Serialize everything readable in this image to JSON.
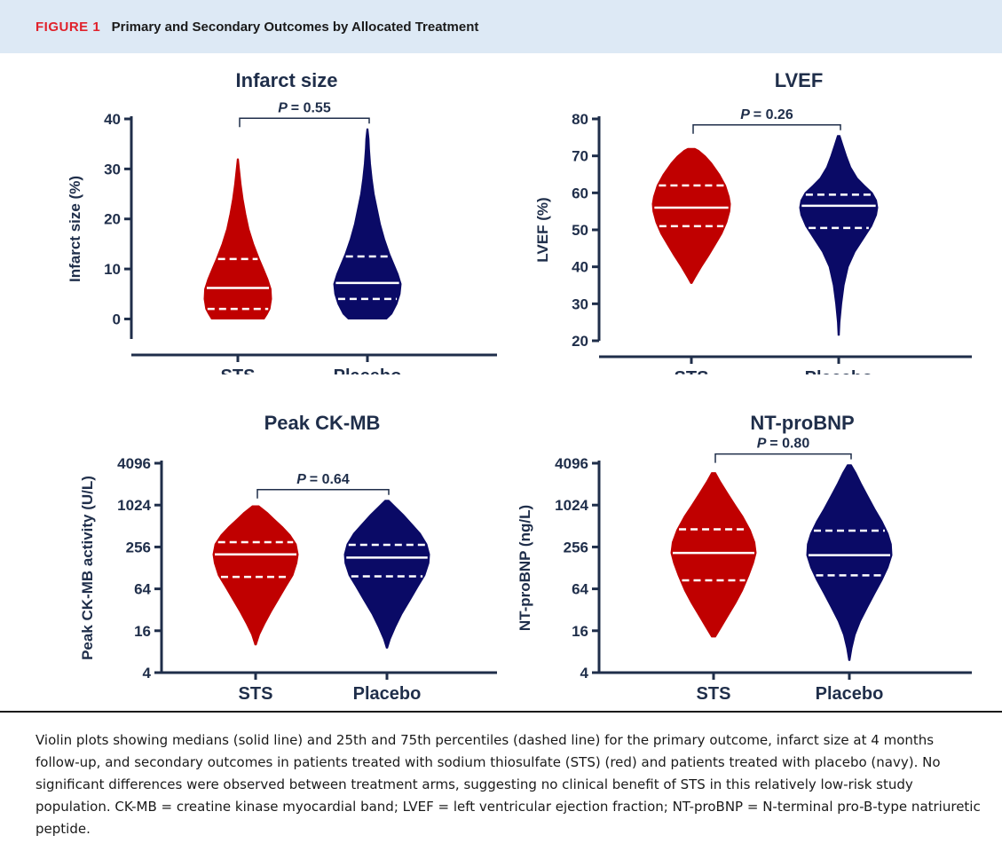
{
  "figure": {
    "label": "FIGURE 1",
    "title": "Primary and Secondary Outcomes by Allocated Treatment"
  },
  "colors": {
    "sts": "#c00000",
    "placebo": "#0a0a66",
    "axis": "#1f2e4a"
  },
  "chart_data": [
    {
      "type": "violin",
      "title": "Infarct size",
      "ylabel": "Infarct size (%)",
      "xlabel": "",
      "scale": "linear",
      "ylim": [
        -4,
        40
      ],
      "yticks": [
        0,
        10,
        20,
        30,
        40
      ],
      "ytick_labels": [
        "0",
        "10",
        "20",
        "30",
        "40"
      ],
      "categories": [
        "STS",
        "Placebo"
      ],
      "pvalue": "= 0.55",
      "series": [
        {
          "name": "STS",
          "color": "#c00000",
          "min": 0,
          "max": 32,
          "q1": 2,
          "median": 6.2,
          "q3": 12,
          "profile": [
            [
              0,
              5.0
            ],
            [
              1,
              5.6
            ],
            [
              2,
              6.1
            ],
            [
              4,
              6.4
            ],
            [
              6,
              6.3
            ],
            [
              8,
              5.7
            ],
            [
              10,
              4.9
            ],
            [
              12,
              4.1
            ],
            [
              15,
              3.0
            ],
            [
              18,
              2.1
            ],
            [
              21,
              1.5
            ],
            [
              24,
              1.0
            ],
            [
              27,
              0.6
            ],
            [
              30,
              0.3
            ],
            [
              32,
              0.1
            ]
          ]
        },
        {
          "name": "Placebo",
          "color": "#0a0a66",
          "min": 0,
          "max": 38,
          "q1": 4,
          "median": 7.2,
          "q3": 12.5,
          "profile": [
            [
              0,
              3.7
            ],
            [
              1,
              4.7
            ],
            [
              3,
              5.7
            ],
            [
              5,
              6.3
            ],
            [
              7,
              6.5
            ],
            [
              9,
              5.9
            ],
            [
              11,
              5.1
            ],
            [
              13,
              4.3
            ],
            [
              16,
              3.3
            ],
            [
              19,
              2.5
            ],
            [
              22,
              1.9
            ],
            [
              25,
              1.3
            ],
            [
              28,
              0.9
            ],
            [
              31,
              0.6
            ],
            [
              34,
              0.4
            ],
            [
              36,
              0.3
            ],
            [
              38,
              0.1
            ]
          ]
        }
      ]
    },
    {
      "type": "violin",
      "title": "LVEF",
      "ylabel": "LVEF (%)",
      "xlabel": "",
      "scale": "linear",
      "ylim": [
        20,
        80
      ],
      "yticks": [
        20,
        30,
        40,
        50,
        60,
        70,
        80
      ],
      "ytick_labels": [
        "20",
        "30",
        "40",
        "50",
        "60",
        "70",
        "80"
      ],
      "categories": [
        "STS",
        "Placebo"
      ],
      "pvalue": "= 0.26",
      "series": [
        {
          "name": "STS",
          "color": "#c00000",
          "min": 35.5,
          "max": 72,
          "q1": 51,
          "median": 56,
          "q3": 62,
          "profile": [
            [
              35.5,
              0.1
            ],
            [
              37,
              0.6
            ],
            [
              40,
              1.7
            ],
            [
              43,
              2.9
            ],
            [
              46,
              4.0
            ],
            [
              49,
              5.1
            ],
            [
              52,
              5.9
            ],
            [
              55,
              6.4
            ],
            [
              57,
              6.5
            ],
            [
              59,
              6.3
            ],
            [
              62,
              5.7
            ],
            [
              65,
              4.7
            ],
            [
              68,
              3.4
            ],
            [
              70,
              2.3
            ],
            [
              71.5,
              1.2
            ],
            [
              72,
              0.6
            ]
          ]
        },
        {
          "name": "Placebo",
          "color": "#0a0a66",
          "min": 21.5,
          "max": 75.5,
          "q1": 50.5,
          "median": 56.5,
          "q3": 59.5,
          "profile": [
            [
              21.5,
              0.1
            ],
            [
              25,
              0.2
            ],
            [
              30,
              0.5
            ],
            [
              35,
              0.9
            ],
            [
              40,
              1.6
            ],
            [
              44,
              2.7
            ],
            [
              48,
              4.3
            ],
            [
              51,
              5.5
            ],
            [
              54,
              6.3
            ],
            [
              56,
              6.5
            ],
            [
              58,
              6.3
            ],
            [
              60,
              5.6
            ],
            [
              62,
              4.3
            ],
            [
              64,
              3.1
            ],
            [
              67,
              2.0
            ],
            [
              70,
              1.3
            ],
            [
              73,
              0.7
            ],
            [
              75.5,
              0.2
            ]
          ]
        }
      ]
    },
    {
      "type": "violin",
      "title": "Peak CK-MB",
      "ylabel": "Peak CK-MB activity (U/L)",
      "xlabel": "",
      "scale": "log2",
      "ylim": [
        4,
        4096
      ],
      "yticks": [
        4,
        16,
        64,
        256,
        1024,
        4096
      ],
      "ytick_labels": [
        "4",
        "16",
        "64",
        "256",
        "1024",
        "4096"
      ],
      "categories": [
        "STS",
        "Placebo"
      ],
      "pvalue": "= 0.64",
      "series": [
        {
          "name": "STS",
          "color": "#c00000",
          "min": 10,
          "max": 1000,
          "q1": 95,
          "median": 200,
          "q3": 300,
          "profile": [
            [
              10,
              0.1
            ],
            [
              14,
              0.6
            ],
            [
              20,
              1.4
            ],
            [
              30,
              2.4
            ],
            [
              45,
              3.5
            ],
            [
              70,
              4.7
            ],
            [
              100,
              5.7
            ],
            [
              150,
              6.3
            ],
            [
              200,
              6.5
            ],
            [
              280,
              6.2
            ],
            [
              380,
              5.3
            ],
            [
              500,
              4.1
            ],
            [
              650,
              2.8
            ],
            [
              800,
              1.8
            ],
            [
              1000,
              0.5
            ]
          ]
        },
        {
          "name": "Placebo",
          "color": "#0a0a66",
          "min": 9,
          "max": 1200,
          "q1": 97,
          "median": 180,
          "q3": 275,
          "profile": [
            [
              9,
              0.1
            ],
            [
              12,
              0.5
            ],
            [
              18,
              1.3
            ],
            [
              28,
              2.3
            ],
            [
              45,
              3.6
            ],
            [
              70,
              4.8
            ],
            [
              100,
              5.8
            ],
            [
              150,
              6.4
            ],
            [
              200,
              6.5
            ],
            [
              280,
              6.1
            ],
            [
              400,
              5.1
            ],
            [
              550,
              3.8
            ],
            [
              750,
              2.5
            ],
            [
              950,
              1.4
            ],
            [
              1200,
              0.3
            ]
          ]
        }
      ]
    },
    {
      "type": "violin",
      "title": "NT-proBNP",
      "ylabel": "NT-proBNP (ng/L)",
      "xlabel": "",
      "scale": "log2",
      "ylim": [
        4,
        4096
      ],
      "yticks": [
        4,
        16,
        64,
        256,
        1024,
        4096
      ],
      "ytick_labels": [
        "4",
        "16",
        "64",
        "256",
        "1024",
        "4096"
      ],
      "categories": [
        "STS",
        "Placebo"
      ],
      "pvalue": "= 0.80",
      "series": [
        {
          "name": "STS",
          "color": "#c00000",
          "min": 13,
          "max": 3000,
          "q1": 85,
          "median": 210,
          "q3": 460,
          "profile": [
            [
              13,
              0.3
            ],
            [
              18,
              1.2
            ],
            [
              25,
              2.1
            ],
            [
              40,
              3.4
            ],
            [
              60,
              4.4
            ],
            [
              100,
              5.4
            ],
            [
              150,
              6.1
            ],
            [
              210,
              6.5
            ],
            [
              300,
              6.3
            ],
            [
              450,
              5.6
            ],
            [
              700,
              4.5
            ],
            [
              1000,
              3.4
            ],
            [
              1500,
              2.2
            ],
            [
              2200,
              1.1
            ],
            [
              3000,
              0.3
            ]
          ]
        },
        {
          "name": "Placebo",
          "color": "#0a0a66",
          "min": 6,
          "max": 3900,
          "q1": 100,
          "median": 195,
          "q3": 440,
          "profile": [
            [
              6,
              0.1
            ],
            [
              9,
              0.4
            ],
            [
              14,
              0.9
            ],
            [
              22,
              1.7
            ],
            [
              35,
              2.8
            ],
            [
              55,
              3.9
            ],
            [
              85,
              5.0
            ],
            [
              130,
              5.9
            ],
            [
              195,
              6.5
            ],
            [
              280,
              6.4
            ],
            [
              400,
              5.9
            ],
            [
              600,
              5.0
            ],
            [
              900,
              3.9
            ],
            [
              1400,
              2.8
            ],
            [
              2100,
              1.8
            ],
            [
              3000,
              1.0
            ],
            [
              3900,
              0.3
            ]
          ]
        }
      ]
    }
  ],
  "caption": "Violin plots showing medians (solid line) and 25th and 75th percentiles (dashed line) for the primary outcome, infarct size at 4 months follow-up, and secondary outcomes in patients treated with sodium thiosulfate (STS) (red) and patients treated with placebo (navy). No significant differences were observed between treatment arms, suggesting no clinical benefit of STS in this relatively low-risk study population. CK-MB = creatine kinase myocardial band; LVEF = left ventricular ejection fraction; NT-proBNP = N-terminal pro-B-type natriuretic peptide."
}
